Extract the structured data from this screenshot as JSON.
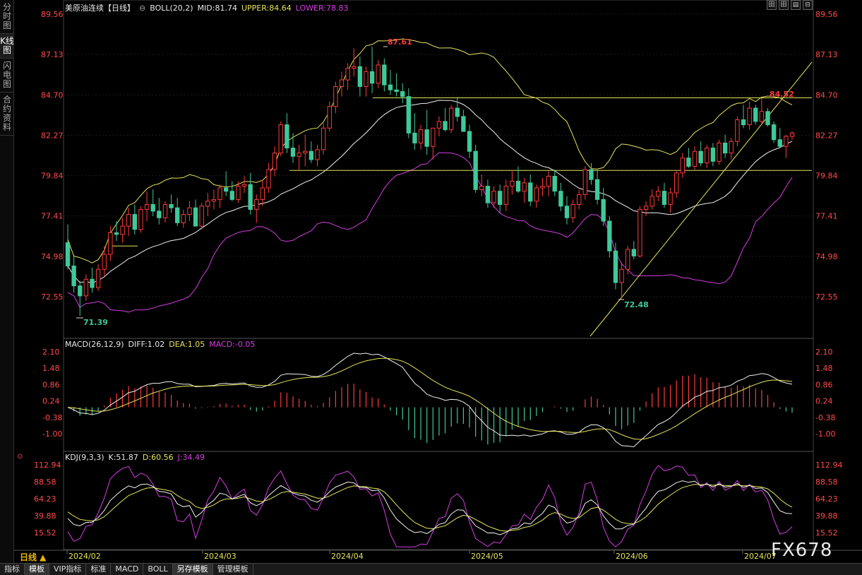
{
  "sidebar": {
    "tabs": [
      {
        "label": "分时图",
        "active": false
      },
      {
        "label": "K线图",
        "active": true
      },
      {
        "label": "闪电图",
        "active": false
      },
      {
        "label": "合约资料",
        "active": false
      }
    ]
  },
  "toolbar": {
    "buttons": [
      "田",
      "田",
      "▤",
      "⊟"
    ]
  },
  "main_panel": {
    "symbol": "美原油连续【日线】",
    "indicator": "BOLL(20,2)",
    "mid": "MID:81.74",
    "upper": "UPPER:84.64",
    "lower": "LOWER:78.83"
  },
  "macd_panel": {
    "label": "MACD(26,12,9)",
    "diff": "DIFF:1.02",
    "dea": "DEA:1.05",
    "macd": "MACD:-0.05"
  },
  "kdj_panel": {
    "label": "KDJ(9,3,3)",
    "k": "K:51.87",
    "d": "D:60.56",
    "j": "J:34.49"
  },
  "colors": {
    "up": "#ff3b3b",
    "down": "#3ec99a",
    "upper_band": "#e6e35a",
    "mid_band": "#f0f0f0",
    "lower_band": "#d43ee0",
    "axis_text": "#ff4c4c",
    "date_text": "#e6e35a"
  },
  "chart_data": {
    "type": "candlestick",
    "price_ticks": [
      "89.56",
      "87.13",
      "84.70",
      "82.27",
      "79.84",
      "77.41",
      "74.98",
      "72.55"
    ],
    "macd_ticks": [
      "2.10",
      "1.48",
      "0.86",
      "0.24",
      "-0.38",
      "-1.00"
    ],
    "kdj_ticks": [
      "112.94",
      "88.58",
      "64.23",
      "39.88",
      "15.52"
    ],
    "date_labels": [
      "2024/02",
      "2024/03",
      "2024/04",
      "2024/05",
      "2024/06",
      "2024/07"
    ],
    "annotations": {
      "high": "87.61",
      "low_left": "71.39",
      "low_right": "72.48",
      "right_high": "84.52"
    },
    "candles": [
      [
        75.8,
        76.9,
        74.2,
        74.4
      ],
      [
        74.4,
        75.0,
        72.8,
        73.2
      ],
      [
        73.2,
        73.5,
        71.4,
        72.6
      ],
      [
        72.6,
        73.9,
        72.3,
        73.6
      ],
      [
        73.6,
        74.3,
        72.8,
        73.1
      ],
      [
        73.1,
        74.5,
        72.9,
        74.2
      ],
      [
        74.2,
        75.6,
        73.8,
        75.1
      ],
      [
        75.1,
        76.8,
        74.7,
        76.4
      ],
      [
        76.4,
        77.1,
        75.9,
        76.3
      ],
      [
        76.3,
        77.3,
        75.8,
        76.8
      ],
      [
        76.8,
        77.9,
        76.2,
        77.5
      ],
      [
        77.5,
        78.1,
        76.3,
        76.6
      ],
      [
        76.6,
        78.0,
        76.4,
        77.8
      ],
      [
        77.8,
        78.9,
        77.1,
        78.1
      ],
      [
        78.1,
        79.0,
        77.4,
        77.7
      ],
      [
        77.7,
        78.5,
        76.9,
        77.3
      ],
      [
        77.3,
        78.3,
        77.0,
        78.1
      ],
      [
        78.1,
        78.7,
        77.6,
        77.9
      ],
      [
        77.9,
        78.5,
        76.8,
        77.0
      ],
      [
        77.0,
        77.8,
        76.7,
        77.5
      ],
      [
        77.5,
        78.3,
        77.1,
        77.9
      ],
      [
        77.9,
        78.4,
        76.8,
        76.8
      ],
      [
        76.8,
        78.2,
        76.6,
        78.0
      ],
      [
        78.0,
        78.8,
        77.4,
        78.3
      ],
      [
        78.3,
        79.0,
        77.8,
        78.4
      ],
      [
        78.4,
        79.3,
        77.9,
        79.1
      ],
      [
        79.1,
        80.1,
        78.6,
        78.9
      ],
      [
        78.9,
        79.5,
        78.3,
        78.4
      ],
      [
        78.4,
        79.5,
        78.2,
        79.2
      ],
      [
        79.2,
        79.8,
        78.8,
        79.3
      ],
      [
        79.3,
        80.0,
        77.5,
        77.8
      ],
      [
        77.8,
        78.7,
        77.0,
        78.4
      ],
      [
        78.4,
        79.6,
        78.0,
        79.1
      ],
      [
        79.1,
        80.6,
        78.8,
        80.2
      ],
      [
        80.2,
        81.6,
        79.8,
        81.2
      ],
      [
        81.2,
        83.1,
        81.0,
        82.9
      ],
      [
        82.9,
        83.6,
        81.2,
        81.5
      ],
      [
        81.5,
        82.4,
        80.6,
        81.0
      ],
      [
        81.0,
        81.7,
        80.1,
        81.2
      ],
      [
        81.2,
        82.3,
        80.4,
        81.3
      ],
      [
        81.3,
        81.9,
        80.6,
        80.8
      ],
      [
        80.8,
        81.7,
        80.4,
        81.4
      ],
      [
        81.4,
        83.0,
        81.1,
        82.7
      ],
      [
        82.7,
        84.3,
        82.5,
        84.0
      ],
      [
        84.0,
        85.5,
        83.6,
        85.2
      ],
      [
        85.2,
        86.1,
        84.6,
        85.6
      ],
      [
        85.6,
        86.6,
        85.0,
        86.3
      ],
      [
        86.3,
        87.5,
        85.8,
        86.4
      ],
      [
        86.4,
        87.0,
        84.6,
        85.2
      ],
      [
        85.2,
        86.4,
        84.6,
        86.1
      ],
      [
        86.1,
        87.6,
        84.8,
        85.4
      ],
      [
        85.4,
        86.8,
        85.1,
        86.5
      ],
      [
        86.5,
        86.9,
        84.9,
        85.3
      ],
      [
        85.3,
        86.2,
        84.7,
        85.0
      ],
      [
        85.0,
        86.0,
        84.6,
        84.9
      ],
      [
        84.9,
        85.4,
        84.2,
        84.6
      ],
      [
        84.6,
        85.1,
        82.1,
        82.4
      ],
      [
        82.4,
        83.6,
        81.4,
        81.8
      ],
      [
        81.8,
        82.9,
        81.4,
        82.6
      ],
      [
        82.6,
        83.8,
        81.1,
        81.6
      ],
      [
        81.6,
        82.7,
        80.8,
        82.7
      ],
      [
        82.7,
        83.4,
        82.2,
        83.1
      ],
      [
        83.1,
        83.9,
        82.5,
        82.6
      ],
      [
        82.6,
        84.1,
        82.4,
        83.9
      ],
      [
        83.9,
        84.5,
        83.1,
        83.4
      ],
      [
        83.4,
        83.8,
        82.6,
        82.5
      ],
      [
        82.5,
        82.9,
        80.9,
        81.3
      ],
      [
        81.3,
        81.7,
        78.8,
        79.0
      ],
      [
        79.0,
        79.9,
        78.6,
        79.2
      ],
      [
        79.2,
        79.6,
        77.9,
        78.2
      ],
      [
        78.2,
        79.2,
        77.9,
        78.9
      ],
      [
        78.9,
        79.3,
        77.6,
        78.1
      ],
      [
        78.1,
        79.6,
        77.7,
        79.2
      ],
      [
        79.2,
        80.1,
        78.7,
        79.5
      ],
      [
        79.5,
        80.4,
        78.8,
        78.9
      ],
      [
        78.9,
        79.7,
        78.2,
        79.4
      ],
      [
        79.4,
        79.9,
        78.0,
        78.3
      ],
      [
        78.3,
        79.3,
        77.9,
        79.1
      ],
      [
        79.1,
        79.7,
        78.6,
        79.2
      ],
      [
        79.2,
        80.1,
        78.6,
        79.8
      ],
      [
        79.8,
        80.2,
        78.6,
        78.9
      ],
      [
        78.9,
        79.4,
        77.7,
        78.0
      ],
      [
        78.0,
        78.6,
        76.9,
        77.3
      ],
      [
        77.3,
        78.4,
        77.0,
        78.1
      ],
      [
        78.1,
        79.0,
        77.8,
        78.7
      ],
      [
        78.7,
        80.4,
        78.4,
        80.2
      ],
      [
        80.2,
        80.6,
        79.3,
        79.6
      ],
      [
        79.6,
        80.2,
        78.1,
        78.4
      ],
      [
        78.4,
        79.1,
        76.8,
        77.1
      ],
      [
        77.1,
        77.4,
        74.9,
        75.3
      ],
      [
        75.3,
        75.8,
        73.0,
        73.4
      ],
      [
        73.4,
        74.6,
        72.5,
        74.2
      ],
      [
        74.2,
        75.6,
        73.9,
        75.4
      ],
      [
        75.4,
        75.9,
        74.8,
        75.0
      ],
      [
        75.0,
        78.0,
        74.9,
        77.8
      ],
      [
        77.8,
        78.3,
        77.4,
        78.0
      ],
      [
        78.0,
        79.0,
        77.8,
        78.6
      ],
      [
        78.6,
        79.2,
        78.3,
        78.9
      ],
      [
        78.9,
        79.4,
        77.9,
        78.1
      ],
      [
        78.1,
        79.1,
        77.6,
        78.8
      ],
      [
        78.8,
        80.1,
        78.5,
        80.0
      ],
      [
        80.0,
        81.2,
        79.7,
        80.9
      ],
      [
        80.9,
        81.5,
        80.3,
        80.4
      ],
      [
        80.4,
        81.6,
        80.2,
        81.3
      ],
      [
        81.3,
        81.9,
        80.4,
        80.6
      ],
      [
        80.6,
        81.7,
        80.3,
        81.5
      ],
      [
        81.5,
        81.8,
        80.4,
        80.7
      ],
      [
        80.7,
        82.0,
        80.5,
        81.8
      ],
      [
        81.8,
        82.3,
        80.9,
        81.2
      ],
      [
        81.2,
        82.1,
        80.8,
        81.9
      ],
      [
        81.9,
        83.4,
        81.6,
        83.2
      ],
      [
        83.2,
        84.1,
        82.7,
        82.9
      ],
      [
        82.9,
        84.3,
        82.6,
        83.9
      ],
      [
        83.9,
        84.1,
        82.9,
        83.1
      ],
      [
        83.1,
        84.5,
        82.9,
        83.7
      ],
      [
        83.7,
        83.9,
        82.8,
        82.9
      ],
      [
        82.9,
        83.1,
        81.8,
        82.0
      ],
      [
        82.0,
        82.7,
        81.5,
        81.6
      ],
      [
        81.6,
        82.3,
        80.9,
        82.2
      ],
      [
        82.2,
        82.5,
        82.0,
        82.4
      ]
    ]
  }
}
